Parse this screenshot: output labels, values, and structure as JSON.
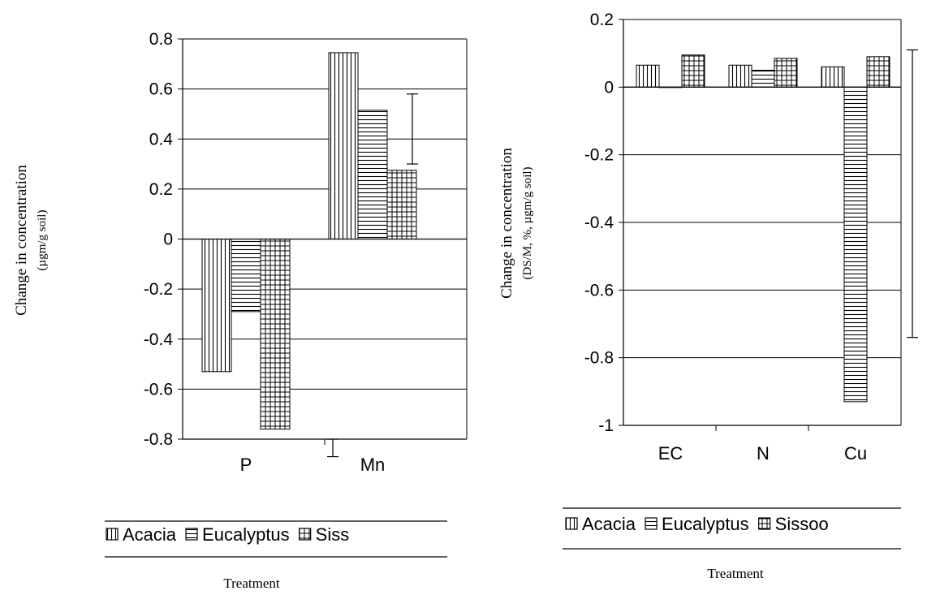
{
  "colors": {
    "ink": "#000000",
    "background": "#ffffff"
  },
  "chart_data": [
    {
      "type": "bar",
      "categories": [
        "P",
        "Mn"
      ],
      "series": [
        {
          "name": "Acacia",
          "pattern": "vertical-lines",
          "values": [
            -0.53,
            0.745
          ]
        },
        {
          "name": "Eucalyptus",
          "pattern": "horizontal-lines",
          "values": [
            -0.29,
            0.515
          ]
        },
        {
          "name": "Siss",
          "pattern": "grid",
          "values": [
            -0.76,
            0.275
          ]
        }
      ],
      "ylabel": "Change in concentration",
      "ylabel_sub": "(µgm/g soil)",
      "xlabel": "Treatment",
      "ylim": [
        -0.8,
        0.8
      ],
      "yticks": [
        "0.8",
        "0.6",
        "0.4",
        "0.2",
        "0",
        "-0.2",
        "-0.4",
        "-0.6",
        "-0.8"
      ],
      "grid": true,
      "legend": "bottom",
      "error_bars": [
        {
          "at": "right of Mn",
          "low": 0.3,
          "high": 0.58
        },
        {
          "at": "between P and Mn",
          "low": -0.87,
          "high": -0.8
        }
      ]
    },
    {
      "type": "bar",
      "categories": [
        "EC",
        "N",
        "Cu"
      ],
      "series": [
        {
          "name": "Acacia",
          "pattern": "vertical-lines",
          "values": [
            0.065,
            0.065,
            0.06
          ]
        },
        {
          "name": "Eucalyptus",
          "pattern": "horizontal-lines",
          "values": [
            0.0,
            0.05,
            -0.93
          ]
        },
        {
          "name": "Sissoo",
          "pattern": "grid",
          "values": [
            0.095,
            0.085,
            0.09
          ]
        }
      ],
      "ylabel": "Change in concentration",
      "ylabel_sub": "(DS/M, %, µgm/g soil)",
      "xlabel": "Treatment",
      "ylim": [
        -1,
        0.2
      ],
      "yticks": [
        "0.2",
        "0",
        "-0.2",
        "-0.4",
        "-0.6",
        "-0.8",
        "-1"
      ],
      "grid": true,
      "legend": "bottom",
      "error_bars": [
        {
          "at": "right edge",
          "low": -0.74,
          "high": 0.11
        }
      ]
    }
  ]
}
